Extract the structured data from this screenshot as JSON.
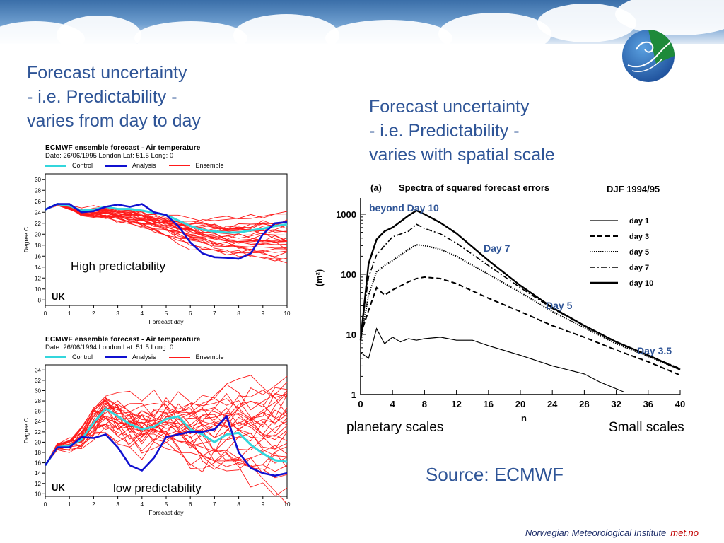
{
  "slide": {
    "title_left": [
      "Forecast uncertainty",
      "- i.e. Predictability -",
      "varies from day to day"
    ],
    "title_right": [
      "Forecast uncertainty",
      "- i.e. Predictability -",
      "varies with spatial scale"
    ],
    "source": "Source: ECMWF",
    "footer_org": "Norwegian Meteorological Institute",
    "footer_site": "met.no",
    "colors": {
      "title": "#2f5597",
      "control": "#33d6dc",
      "analysis": "#1010d0",
      "ensemble": "#ff1a1a"
    }
  },
  "chart_data": [
    {
      "type": "line",
      "title": "ECMWF ensemble forecast - Air temperature",
      "subtitle": "Date: 26/06/1995 London Lat: 51.5 Long: 0",
      "legend": [
        "Control",
        "Analysis",
        "Ensemble"
      ],
      "xlabel": "Forecast day",
      "ylabel": "Degree C",
      "xlim": [
        0,
        10
      ],
      "ylim": [
        7,
        31
      ],
      "xticks": [
        "0",
        "1",
        "2",
        "3",
        "4",
        "5",
        "6",
        "7",
        "8",
        "9",
        "10"
      ],
      "yticks": [
        "8",
        "10",
        "12",
        "14",
        "16",
        "18",
        "20",
        "22",
        "24",
        "26",
        "28",
        "30"
      ],
      "corner_label": "UK",
      "annotation": "High predictability",
      "x": [
        0,
        0.5,
        1,
        1.5,
        2,
        2.5,
        3,
        3.5,
        4,
        4.5,
        5,
        5.5,
        6,
        6.5,
        7,
        7.5,
        8,
        8.5,
        9,
        9.5,
        10
      ],
      "series": [
        {
          "name": "Analysis",
          "values": [
            24.5,
            25.5,
            25.5,
            24,
            24.2,
            25,
            25.4,
            25,
            25.5,
            24,
            23.5,
            21.5,
            18.5,
            16.5,
            15.8,
            15.7,
            15.5,
            16.5,
            20,
            22,
            22.2
          ]
        },
        {
          "name": "Control",
          "values": [
            24.5,
            25.5,
            25.2,
            24.3,
            24.5,
            25,
            24.6,
            24.6,
            24.3,
            23.9,
            23.5,
            22.5,
            21.5,
            20.8,
            20.5,
            20.3,
            20.3,
            20.7,
            21,
            21.5,
            21.8
          ]
        }
      ],
      "ensemble_members": 30,
      "ensemble_range_day10": [
        15,
        23.5
      ]
    },
    {
      "type": "line",
      "title": "ECMWF ensemble forecast - Air temperature",
      "subtitle": "Date: 26/06/1994 London Lat: 51.5 Long: 0",
      "legend": [
        "Control",
        "Analysis",
        "Ensemble"
      ],
      "xlabel": "Forecast day",
      "ylabel": "Degree C",
      "xlim": [
        0,
        10
      ],
      "ylim": [
        9.5,
        35
      ],
      "xticks": [
        "0",
        "1",
        "2",
        "3",
        "4",
        "5",
        "6",
        "7",
        "8",
        "9",
        "10"
      ],
      "yticks": [
        "10",
        "12",
        "14",
        "16",
        "18",
        "20",
        "22",
        "24",
        "26",
        "28",
        "30",
        "32",
        "34"
      ],
      "corner_label": "UK",
      "annotation": "low predictability",
      "x": [
        0,
        0.5,
        1,
        1.5,
        2,
        2.5,
        3,
        3.5,
        4,
        4.5,
        5,
        5.5,
        6,
        6.5,
        7,
        7.5,
        8,
        8.5,
        9,
        9.5,
        10
      ],
      "series": [
        {
          "name": "Analysis",
          "values": [
            15.5,
            19,
            19,
            21,
            20.8,
            21.5,
            19,
            15.5,
            14.5,
            17,
            21,
            21.5,
            22,
            22,
            22.5,
            25,
            18,
            15,
            14,
            13.5,
            14
          ]
        },
        {
          "name": "Control",
          "values": [
            15.5,
            19,
            19.3,
            20.5,
            23.8,
            26.5,
            25,
            23.5,
            22.5,
            23,
            24.5,
            25,
            22.5,
            21.5,
            20,
            21.5,
            21.8,
            19.5,
            17.8,
            16.5,
            16.2
          ]
        }
      ],
      "ensemble_members": 30,
      "ensemble_range_day10": [
        11.5,
        32
      ]
    },
    {
      "type": "line",
      "title": "Spectra of squared forecast errors",
      "panel_label": "(a)",
      "season": "DJF 1994/95",
      "xlabel": "n",
      "ylabel": "(m²)",
      "xlim": [
        0,
        40
      ],
      "ylim": [
        1,
        1500
      ],
      "yscale": "log",
      "xticks": [
        "0",
        "4",
        "8",
        "12",
        "16",
        "20",
        "24",
        "28",
        "32",
        "36",
        "40"
      ],
      "yticks": [
        "1",
        "10",
        "100",
        "1000"
      ],
      "legend_position": "top-right",
      "series": [
        {
          "name": "day 1",
          "style": "solid",
          "x": [
            0,
            1,
            2,
            3,
            4,
            5,
            6,
            7,
            8,
            10,
            12,
            14,
            16,
            20,
            24,
            28,
            30,
            33
          ],
          "values": [
            5,
            4,
            12.5,
            7,
            9,
            7.5,
            8.5,
            8,
            8.5,
            9,
            8,
            8,
            6.5,
            4.5,
            3,
            2.2,
            1.6,
            1.1
          ]
        },
        {
          "name": "day 3",
          "style": "dashed",
          "x": [
            0,
            1,
            2,
            3,
            4,
            6,
            7,
            8,
            10,
            12,
            16,
            20,
            24,
            28,
            32,
            36,
            40
          ],
          "values": [
            10,
            25,
            60,
            45,
            55,
            75,
            85,
            90,
            85,
            70,
            40,
            24,
            14,
            9,
            5.5,
            3.5,
            2.1
          ]
        },
        {
          "name": "day 5",
          "style": "dotted",
          "x": [
            0,
            1,
            2,
            3,
            4,
            6,
            7,
            8,
            10,
            12,
            16,
            20,
            24,
            28,
            32,
            36,
            40
          ],
          "values": [
            8,
            45,
            110,
            140,
            170,
            260,
            310,
            300,
            260,
            200,
            100,
            50,
            24,
            13,
            7,
            4.3,
            2.6
          ]
        },
        {
          "name": "day 7",
          "style": "dashdot",
          "x": [
            0,
            1,
            2,
            3,
            4,
            6,
            7,
            8,
            10,
            12,
            16,
            20,
            24,
            28,
            32,
            36,
            40
          ],
          "values": [
            9,
            90,
            210,
            300,
            420,
            520,
            680,
            580,
            470,
            330,
            140,
            60,
            27,
            14,
            7.5,
            4.5,
            2.7
          ]
        },
        {
          "name": "day 10",
          "style": "solid-thick",
          "x": [
            0,
            1,
            2,
            3,
            4,
            6,
            7,
            8,
            10,
            12,
            16,
            20,
            24,
            28,
            32,
            36,
            40
          ],
          "values": [
            8,
            150,
            380,
            520,
            600,
            950,
            1150,
            1000,
            720,
            480,
            170,
            65,
            28,
            14,
            7.5,
            4.5,
            2.6
          ]
        }
      ],
      "annotations": [
        "beyond Day 10",
        "Day 7",
        "Day 5",
        "Day 3.5"
      ],
      "xaxis_end_labels": [
        "planetary scales",
        "Small scales"
      ]
    }
  ]
}
